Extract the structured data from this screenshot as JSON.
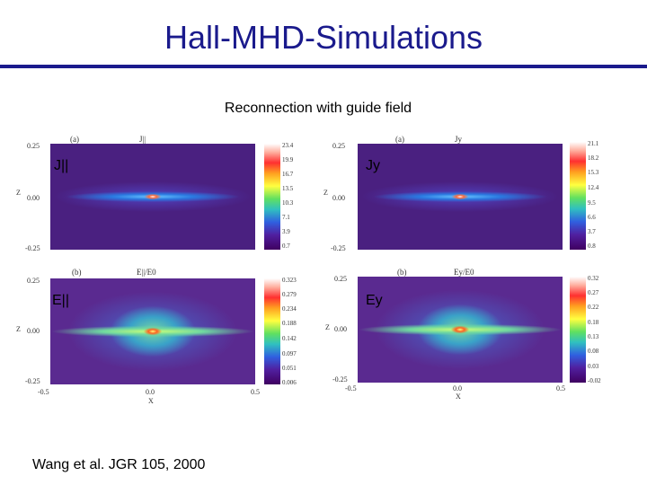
{
  "slide": {
    "title": "Hall-MHD-Simulations",
    "subtitle": "Reconnection with guide field",
    "citation": "Wang et al. JGR 105, 2000",
    "title_color": "#1a1a8c"
  },
  "panels": [
    {
      "label": "J||",
      "tag": "(a)",
      "header": "J||",
      "yticks": [
        "0.25",
        "0.00",
        "-0.25"
      ],
      "ylabel": "Z",
      "colorbar": [
        "23.4",
        "19.9",
        "16.7",
        "13.5",
        "10.3",
        "7.1",
        "3.9",
        "0.7"
      ]
    },
    {
      "label": "Jy",
      "tag": "(a)",
      "header": "Jy",
      "yticks": [
        "0.25",
        "0.00",
        "-0.25"
      ],
      "ylabel": "Z",
      "colorbar": [
        "21.1",
        "18.2",
        "15.3",
        "12.4",
        "9.5",
        "6.6",
        "3.7",
        "0.8"
      ]
    },
    {
      "label": "E||",
      "tag": "(b)",
      "header": "E||/E0",
      "yticks": [
        "0.25",
        "0.00",
        "-0.25"
      ],
      "ylabel": "Z",
      "xticks": [
        "-0.5",
        "0.0",
        "0.5"
      ],
      "xlabel": "X",
      "colorbar": [
        "0.323",
        "0.279",
        "0.234",
        "0.188",
        "0.142",
        "0.097",
        "0.051",
        "0.006"
      ]
    },
    {
      "label": "Ey",
      "tag": "(b)",
      "header": "Ey/E0",
      "yticks": [
        "0.25",
        "0.00",
        "-0.25"
      ],
      "ylabel": "Z",
      "xticks": [
        "-0.5",
        "0.0",
        "0.5"
      ],
      "xlabel": "X",
      "colorbar": [
        "0.32",
        "0.27",
        "0.22",
        "0.18",
        "0.13",
        "0.08",
        "0.03",
        "-0.02"
      ]
    }
  ]
}
